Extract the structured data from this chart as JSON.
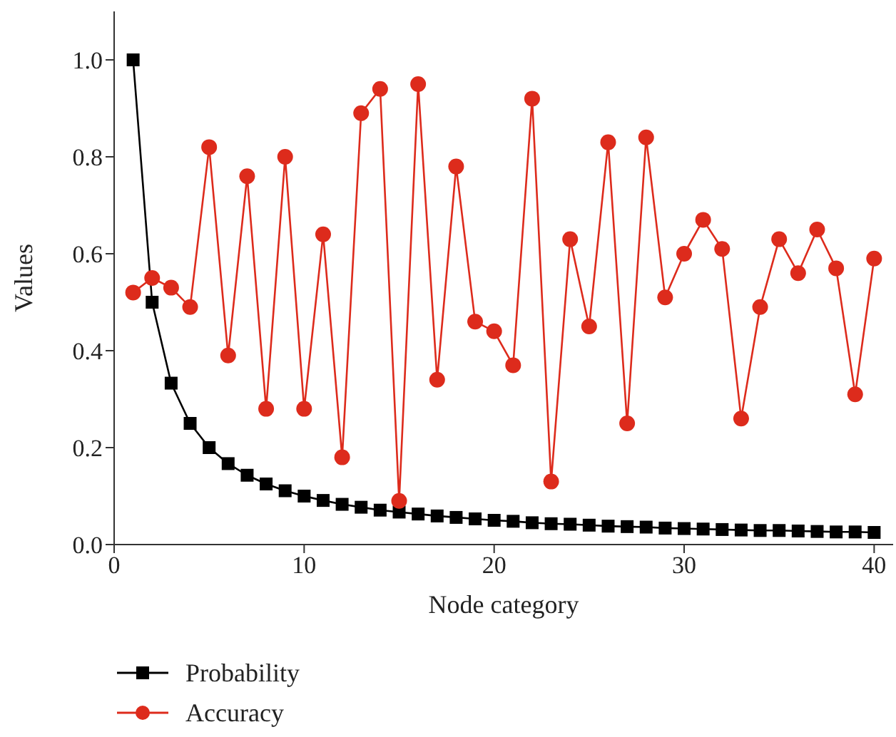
{
  "chart_data": {
    "type": "line",
    "xlabel": "Node category",
    "ylabel": "Values",
    "x": [
      1,
      2,
      3,
      4,
      5,
      6,
      7,
      8,
      9,
      10,
      11,
      12,
      13,
      14,
      15,
      16,
      17,
      18,
      19,
      20,
      21,
      22,
      23,
      24,
      25,
      26,
      27,
      28,
      29,
      30,
      31,
      32,
      33,
      34,
      35,
      36,
      37,
      38,
      39,
      40
    ],
    "series": [
      {
        "name": "Probability",
        "color": "#000000",
        "marker": "square",
        "values": [
          1.0,
          0.5,
          0.333,
          0.25,
          0.2,
          0.167,
          0.143,
          0.125,
          0.111,
          0.1,
          0.091,
          0.083,
          0.077,
          0.071,
          0.067,
          0.063,
          0.059,
          0.056,
          0.053,
          0.05,
          0.048,
          0.045,
          0.043,
          0.042,
          0.04,
          0.038,
          0.037,
          0.036,
          0.034,
          0.033,
          0.032,
          0.031,
          0.03,
          0.029,
          0.029,
          0.028,
          0.027,
          0.026,
          0.026,
          0.025
        ]
      },
      {
        "name": "Accuracy",
        "color": "#dd2b1c",
        "marker": "circle",
        "values": [
          0.52,
          0.55,
          0.53,
          0.49,
          0.82,
          0.39,
          0.76,
          0.28,
          0.8,
          0.28,
          0.64,
          0.18,
          0.89,
          0.94,
          0.09,
          0.95,
          0.34,
          0.78,
          0.46,
          0.44,
          0.37,
          0.92,
          0.13,
          0.63,
          0.45,
          0.83,
          0.25,
          0.84,
          0.51,
          0.6,
          0.67,
          0.61,
          0.26,
          0.49,
          0.63,
          0.56,
          0.65,
          0.57,
          0.31,
          0.59
        ]
      }
    ],
    "xlim": [
      0,
      41
    ],
    "xticks": [
      0,
      10,
      20,
      30,
      40
    ],
    "ylim": [
      0,
      1.1
    ],
    "yticks": [
      {
        "value": 0,
        "label": "0.0"
      },
      0.2,
      0.4,
      0.6,
      0.8,
      {
        "value": 1,
        "label": "1.0"
      }
    ],
    "grid": false,
    "legend": "bottom left",
    "line_style": "solid"
  }
}
